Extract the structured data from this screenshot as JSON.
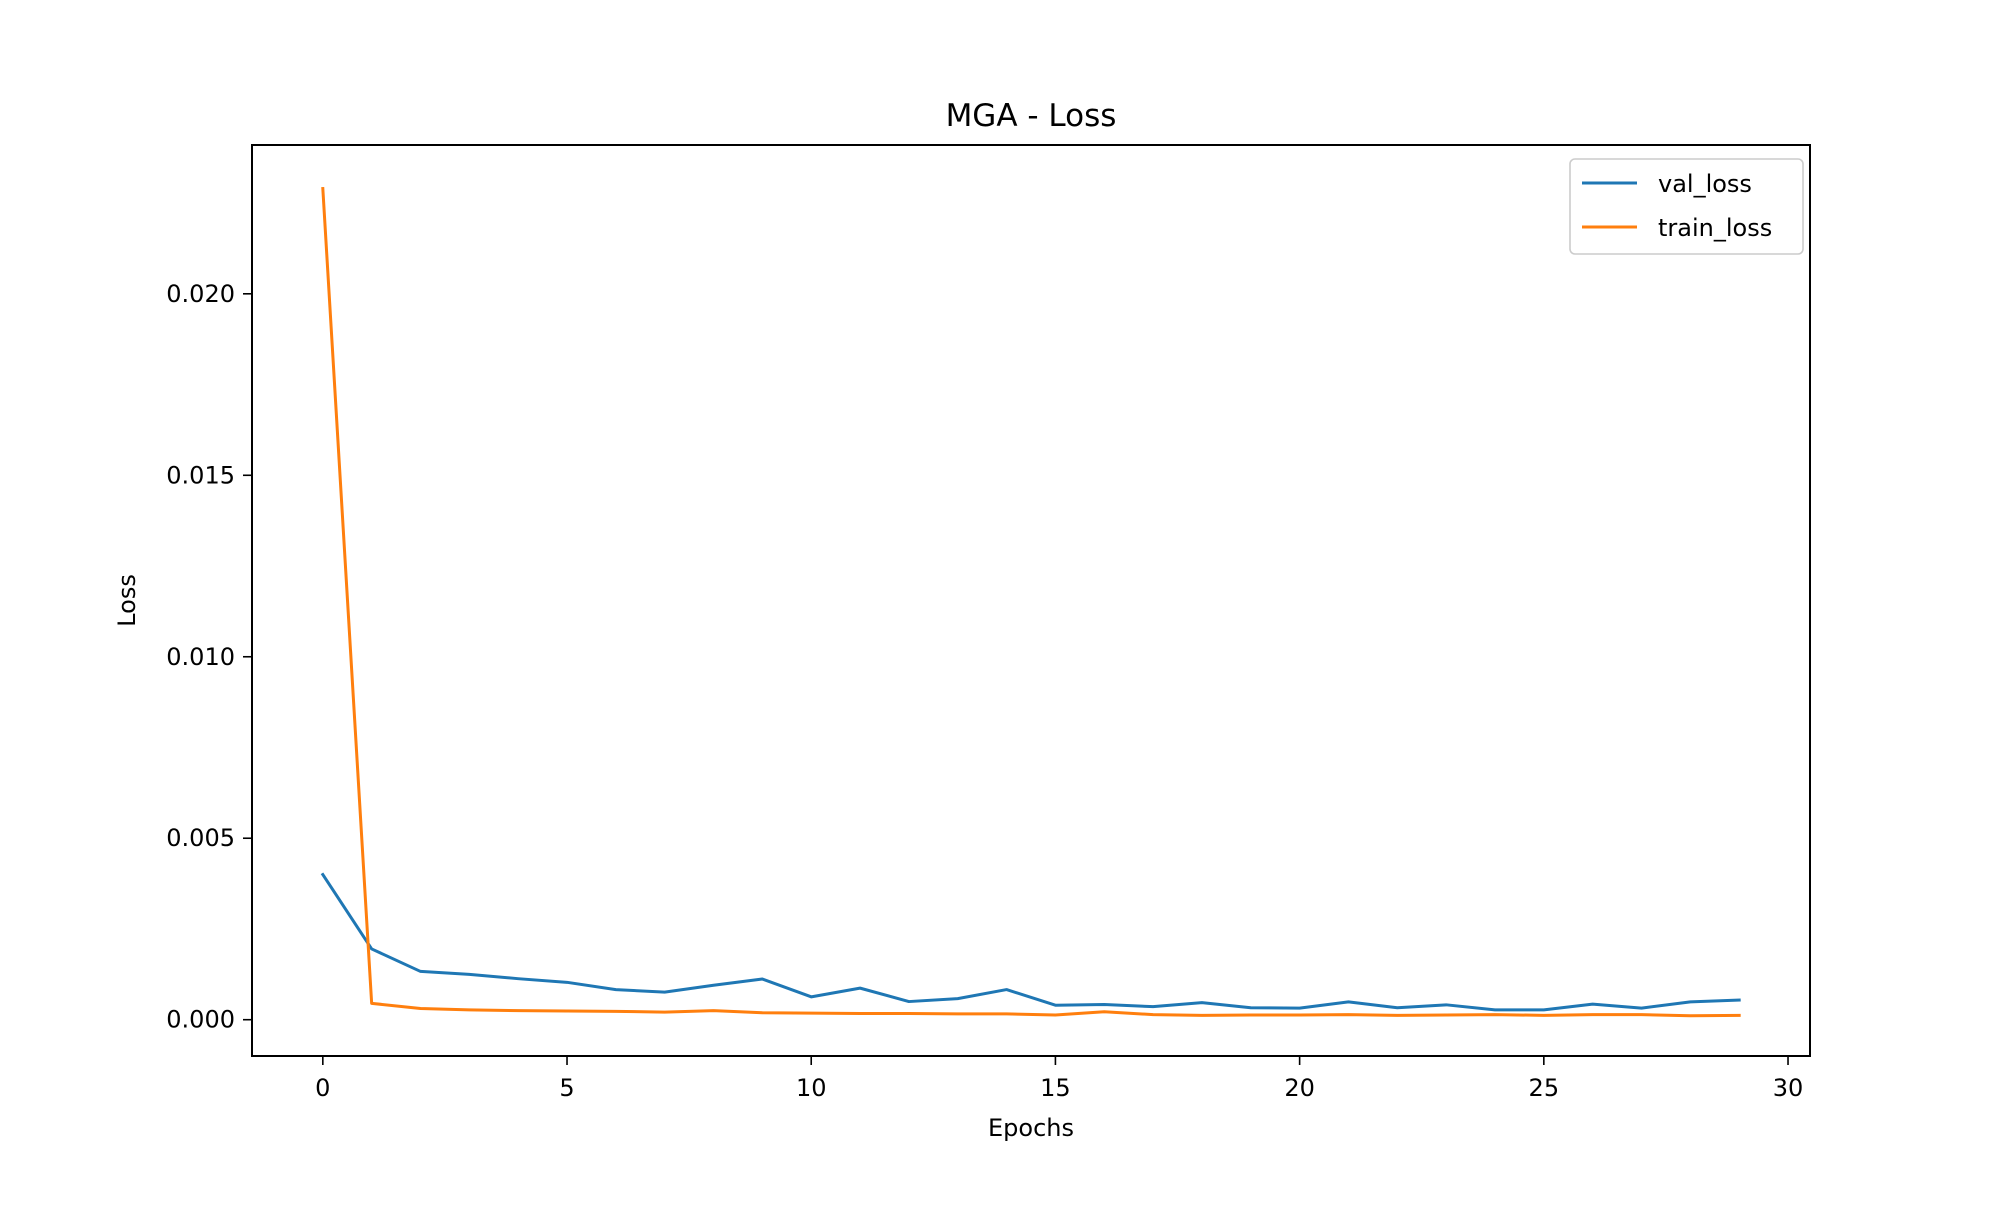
{
  "chart_data": {
    "type": "line",
    "title": "MGA - Loss",
    "xlabel": "Epochs",
    "ylabel": "Loss",
    "xlim": [
      -1.45,
      30.45
    ],
    "ylim": [
      -0.001,
      0.0241
    ],
    "xticks": [
      0,
      5,
      10,
      15,
      20,
      25,
      30
    ],
    "xtick_labels": [
      "0",
      "5",
      "10",
      "15",
      "20",
      "25",
      "30"
    ],
    "yticks": [
      0.0,
      0.005,
      0.01,
      0.015,
      0.02
    ],
    "ytick_labels": [
      "0.000",
      "0.005",
      "0.010",
      "0.015",
      "0.020"
    ],
    "grid": false,
    "legend_position": "top-right",
    "x": [
      0,
      1,
      2,
      3,
      4,
      5,
      6,
      7,
      8,
      9,
      10,
      11,
      12,
      13,
      14,
      15,
      16,
      17,
      18,
      19,
      20,
      21,
      22,
      23,
      24,
      25,
      26,
      27,
      28,
      29
    ],
    "series": [
      {
        "name": "val_loss",
        "color": "#1f77b4",
        "values": [
          0.004,
          0.00195,
          0.00133,
          0.00125,
          0.00113,
          0.00103,
          0.00083,
          0.00076,
          0.00095,
          0.00112,
          0.00063,
          0.00087,
          0.0005,
          0.00058,
          0.00083,
          0.0004,
          0.00042,
          0.00036,
          0.00047,
          0.00033,
          0.00032,
          0.00049,
          0.00033,
          0.00041,
          0.00027,
          0.00027,
          0.00043,
          0.00032,
          0.00049,
          0.00054
        ]
      },
      {
        "name": "train_loss",
        "color": "#ff7f0e",
        "values": [
          0.0229,
          0.00045,
          0.00031,
          0.00027,
          0.00025,
          0.00024,
          0.00023,
          0.00021,
          0.00025,
          0.00019,
          0.00018,
          0.00017,
          0.00017,
          0.00016,
          0.00016,
          0.00013,
          0.00022,
          0.00014,
          0.00012,
          0.00013,
          0.00013,
          0.00014,
          0.00012,
          0.00013,
          0.00014,
          0.00012,
          0.00014,
          0.00014,
          0.00011,
          0.00012
        ]
      }
    ]
  }
}
